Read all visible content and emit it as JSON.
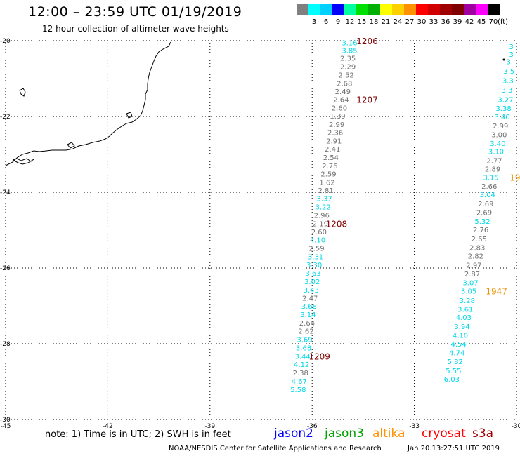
{
  "header": {
    "title": "12:00 – 23:59 UTC 01/19/2019",
    "subtitle": "12 hour collection of altimeter wave heights"
  },
  "legend": {
    "unit": "(ft)",
    "bins": [
      {
        "label": "",
        "color": "#808080"
      },
      {
        "label": "3",
        "color": "#00ffff"
      },
      {
        "label": "6",
        "color": "#00d0ff"
      },
      {
        "label": "9",
        "color": "#0000ff"
      },
      {
        "label": "12",
        "color": "#00ffa0"
      },
      {
        "label": "15",
        "color": "#00e000"
      },
      {
        "label": "18",
        "color": "#00b000"
      },
      {
        "label": "21",
        "color": "#ffff00"
      },
      {
        "label": "24",
        "color": "#ffd000"
      },
      {
        "label": "27",
        "color": "#ff9000"
      },
      {
        "label": "30",
        "color": "#ff0000"
      },
      {
        "label": "33",
        "color": "#d00000"
      },
      {
        "label": "36",
        "color": "#a00000"
      },
      {
        "label": "39",
        "color": "#800000"
      },
      {
        "label": "42",
        "color": "#a000a0"
      },
      {
        "label": "45",
        "color": "#ff00ff"
      },
      {
        "label": "70",
        "color": "#000000"
      }
    ]
  },
  "map": {
    "lon_range": [
      -45,
      -30
    ],
    "lat_range": [
      -30,
      -20
    ],
    "lon_ticks": [
      "-45",
      "-42",
      "-39",
      "-36",
      "-33",
      "-30"
    ],
    "lat_ticks": [
      "-20",
      "-22",
      "-24",
      "-26",
      "-28",
      "-30"
    ],
    "colors": {
      "gray": "#707070",
      "cyan": "#00d8e8",
      "maroon": "#800000",
      "orange": "#ee9000"
    },
    "observations": [
      {
        "lon": -34.9,
        "lat": -20.05,
        "value": "3.16",
        "c": "cyan"
      },
      {
        "lon": -34.9,
        "lat": -20.25,
        "value": "3.85",
        "c": "cyan"
      },
      {
        "lon": -34.95,
        "lat": -20.45,
        "value": "2.35",
        "c": "gray"
      },
      {
        "lon": -34.95,
        "lat": -20.68,
        "value": "2.29",
        "c": "gray"
      },
      {
        "lon": -35.0,
        "lat": -20.9,
        "value": "2.52",
        "c": "gray"
      },
      {
        "lon": -35.05,
        "lat": -21.12,
        "value": "2.68",
        "c": "gray"
      },
      {
        "lon": -35.1,
        "lat": -21.33,
        "value": "2.49",
        "c": "gray"
      },
      {
        "lon": -35.15,
        "lat": -21.55,
        "value": "2.64",
        "c": "gray"
      },
      {
        "lon": -35.2,
        "lat": -21.77,
        "value": "2.60",
        "c": "gray"
      },
      {
        "lon": -35.25,
        "lat": -21.98,
        "value": "1.39",
        "c": "gray"
      },
      {
        "lon": -35.28,
        "lat": -22.2,
        "value": "2.99",
        "c": "gray"
      },
      {
        "lon": -35.32,
        "lat": -22.42,
        "value": "2.36",
        "c": "gray"
      },
      {
        "lon": -35.36,
        "lat": -22.64,
        "value": "2.91",
        "c": "gray"
      },
      {
        "lon": -35.4,
        "lat": -22.85,
        "value": "2.41",
        "c": "gray"
      },
      {
        "lon": -35.45,
        "lat": -23.07,
        "value": "2.54",
        "c": "gray"
      },
      {
        "lon": -35.48,
        "lat": -23.3,
        "value": "2.76",
        "c": "gray"
      },
      {
        "lon": -35.52,
        "lat": -23.51,
        "value": "2.59",
        "c": "gray"
      },
      {
        "lon": -35.56,
        "lat": -23.73,
        "value": "1.62",
        "c": "gray"
      },
      {
        "lon": -35.6,
        "lat": -23.94,
        "value": "2.81",
        "c": "gray"
      },
      {
        "lon": -35.64,
        "lat": -24.16,
        "value": "3.37",
        "c": "cyan"
      },
      {
        "lon": -35.68,
        "lat": -24.38,
        "value": "3.22",
        "c": "cyan"
      },
      {
        "lon": -35.72,
        "lat": -24.6,
        "value": "2.96",
        "c": "gray"
      },
      {
        "lon": -35.76,
        "lat": -24.82,
        "value": "2.19",
        "c": "gray"
      },
      {
        "lon": -35.8,
        "lat": -25.04,
        "value": "2.60",
        "c": "gray"
      },
      {
        "lon": -35.84,
        "lat": -25.25,
        "value": "4.10",
        "c": "cyan"
      },
      {
        "lon": -35.87,
        "lat": -25.47,
        "value": "2.59",
        "c": "gray"
      },
      {
        "lon": -35.9,
        "lat": -25.69,
        "value": "3.31",
        "c": "cyan"
      },
      {
        "lon": -35.94,
        "lat": -25.91,
        "value": "3.30",
        "c": "cyan"
      },
      {
        "lon": -35.97,
        "lat": -26.13,
        "value": "3.63",
        "c": "cyan"
      },
      {
        "lon": -36.0,
        "lat": -26.35,
        "value": "3.02",
        "c": "cyan"
      },
      {
        "lon": -36.03,
        "lat": -26.57,
        "value": "3.43",
        "c": "cyan"
      },
      {
        "lon": -36.06,
        "lat": -26.79,
        "value": "2.47",
        "c": "gray"
      },
      {
        "lon": -36.09,
        "lat": -27.0,
        "value": "3.68",
        "c": "cyan"
      },
      {
        "lon": -36.12,
        "lat": -27.22,
        "value": "3.14",
        "c": "cyan"
      },
      {
        "lon": -36.15,
        "lat": -27.44,
        "value": "2.64",
        "c": "gray"
      },
      {
        "lon": -36.18,
        "lat": -27.66,
        "value": "2.62",
        "c": "gray"
      },
      {
        "lon": -36.22,
        "lat": -27.88,
        "value": "3.69",
        "c": "cyan"
      },
      {
        "lon": -36.25,
        "lat": -28.1,
        "value": "3.68",
        "c": "cyan"
      },
      {
        "lon": -36.28,
        "lat": -28.32,
        "value": "3.44",
        "c": "cyan"
      },
      {
        "lon": -36.31,
        "lat": -28.54,
        "value": "4.12",
        "c": "cyan"
      },
      {
        "lon": -36.34,
        "lat": -28.76,
        "value": "2.38",
        "c": "gray"
      },
      {
        "lon": -36.38,
        "lat": -28.98,
        "value": "4.67",
        "c": "cyan"
      },
      {
        "lon": -36.41,
        "lat": -29.2,
        "value": "5.58",
        "c": "cyan"
      },
      {
        "lon": -30.15,
        "lat": -20.15,
        "value": "3",
        "c": "cyan"
      },
      {
        "lon": -30.15,
        "lat": -20.35,
        "value": "3",
        "c": "cyan"
      },
      {
        "lon": -30.2,
        "lat": -20.55,
        "value": "3.",
        "c": "cyan"
      },
      {
        "lon": -30.22,
        "lat": -20.8,
        "value": "3.5",
        "c": "cyan"
      },
      {
        "lon": -30.25,
        "lat": -21.05,
        "value": "3.3",
        "c": "cyan"
      },
      {
        "lon": -30.28,
        "lat": -21.3,
        "value": "3.3",
        "c": "cyan"
      },
      {
        "lon": -30.32,
        "lat": -21.55,
        "value": "3.27",
        "c": "cyan"
      },
      {
        "lon": -30.38,
        "lat": -21.78,
        "value": "3.38",
        "c": "cyan"
      },
      {
        "lon": -30.42,
        "lat": -22.0,
        "value": "3.40",
        "c": "cyan"
      },
      {
        "lon": -30.47,
        "lat": -22.24,
        "value": "2.99",
        "c": "gray"
      },
      {
        "lon": -30.51,
        "lat": -22.47,
        "value": "3.00",
        "c": "gray"
      },
      {
        "lon": -30.55,
        "lat": -22.7,
        "value": "3.40",
        "c": "cyan"
      },
      {
        "lon": -30.6,
        "lat": -22.92,
        "value": "3.10",
        "c": "cyan"
      },
      {
        "lon": -30.65,
        "lat": -23.16,
        "value": "2.77",
        "c": "gray"
      },
      {
        "lon": -30.7,
        "lat": -23.38,
        "value": "2.89",
        "c": "gray"
      },
      {
        "lon": -30.75,
        "lat": -23.6,
        "value": "3.15",
        "c": "cyan"
      },
      {
        "lon": -30.8,
        "lat": -23.83,
        "value": "2.66",
        "c": "gray"
      },
      {
        "lon": -30.85,
        "lat": -24.06,
        "value": "3.04",
        "c": "cyan"
      },
      {
        "lon": -30.9,
        "lat": -24.3,
        "value": "2.69",
        "c": "gray"
      },
      {
        "lon": -30.95,
        "lat": -24.53,
        "value": "2.69",
        "c": "gray"
      },
      {
        "lon": -31.0,
        "lat": -24.76,
        "value": "5.32",
        "c": "cyan"
      },
      {
        "lon": -31.05,
        "lat": -24.98,
        "value": "2.76",
        "c": "gray"
      },
      {
        "lon": -31.1,
        "lat": -25.22,
        "value": "2.65",
        "c": "gray"
      },
      {
        "lon": -31.15,
        "lat": -25.45,
        "value": "2.83",
        "c": "gray"
      },
      {
        "lon": -31.2,
        "lat": -25.68,
        "value": "2.82",
        "c": "gray"
      },
      {
        "lon": -31.25,
        "lat": -25.92,
        "value": "2.97",
        "c": "gray"
      },
      {
        "lon": -31.3,
        "lat": -26.15,
        "value": "2.87",
        "c": "gray"
      },
      {
        "lon": -31.35,
        "lat": -26.38,
        "value": "3.07",
        "c": "cyan"
      },
      {
        "lon": -31.4,
        "lat": -26.6,
        "value": "3.05",
        "c": "cyan"
      },
      {
        "lon": -31.45,
        "lat": -26.85,
        "value": "3.28",
        "c": "cyan"
      },
      {
        "lon": -31.5,
        "lat": -27.08,
        "value": "3.61",
        "c": "cyan"
      },
      {
        "lon": -31.55,
        "lat": -27.3,
        "value": "4.03",
        "c": "cyan"
      },
      {
        "lon": -31.6,
        "lat": -27.54,
        "value": "3.94",
        "c": "cyan"
      },
      {
        "lon": -31.65,
        "lat": -27.77,
        "value": "4.10",
        "c": "cyan"
      },
      {
        "lon": -31.7,
        "lat": -28.0,
        "value": "4.54",
        "c": "cyan"
      },
      {
        "lon": -31.75,
        "lat": -28.23,
        "value": "4.74",
        "c": "cyan"
      },
      {
        "lon": -31.8,
        "lat": -28.46,
        "value": "5.82",
        "c": "cyan"
      },
      {
        "lon": -31.85,
        "lat": -28.7,
        "value": "5.55",
        "c": "cyan"
      },
      {
        "lon": -31.9,
        "lat": -28.93,
        "value": "6.03",
        "c": "cyan"
      }
    ],
    "time_labels": [
      {
        "lon": -34.7,
        "lat": -20.0,
        "label": "1206",
        "c": "maroon"
      },
      {
        "lon": -34.7,
        "lat": -21.55,
        "label": "1207",
        "c": "maroon"
      },
      {
        "lon": -35.6,
        "lat": -24.82,
        "label": "1208",
        "c": "maroon"
      },
      {
        "lon": -36.1,
        "lat": -28.32,
        "label": "1209",
        "c": "maroon"
      },
      {
        "lon": -30.9,
        "lat": -26.6,
        "label": "1947",
        "c": "orange"
      },
      {
        "lon": -30.2,
        "lat": -23.6,
        "label": "19",
        "c": "orange"
      }
    ]
  },
  "footer": {
    "note": "note: 1) Time is in UTC; 2) SWH is in feet",
    "satellites": [
      {
        "name": "jason2",
        "color": "#0000ff"
      },
      {
        "name": "jason3",
        "color": "#00a000"
      },
      {
        "name": "altika",
        "color": "#ff9000"
      },
      {
        "name": "cryosat",
        "color": "#ff0000"
      },
      {
        "name": "s3a",
        "color": "#a00000"
      }
    ],
    "credit": "NOAA/NESDIS Center for Satellite Applications and Research",
    "timestamp": "Jan 20 13:27:51 UTC 2019"
  }
}
